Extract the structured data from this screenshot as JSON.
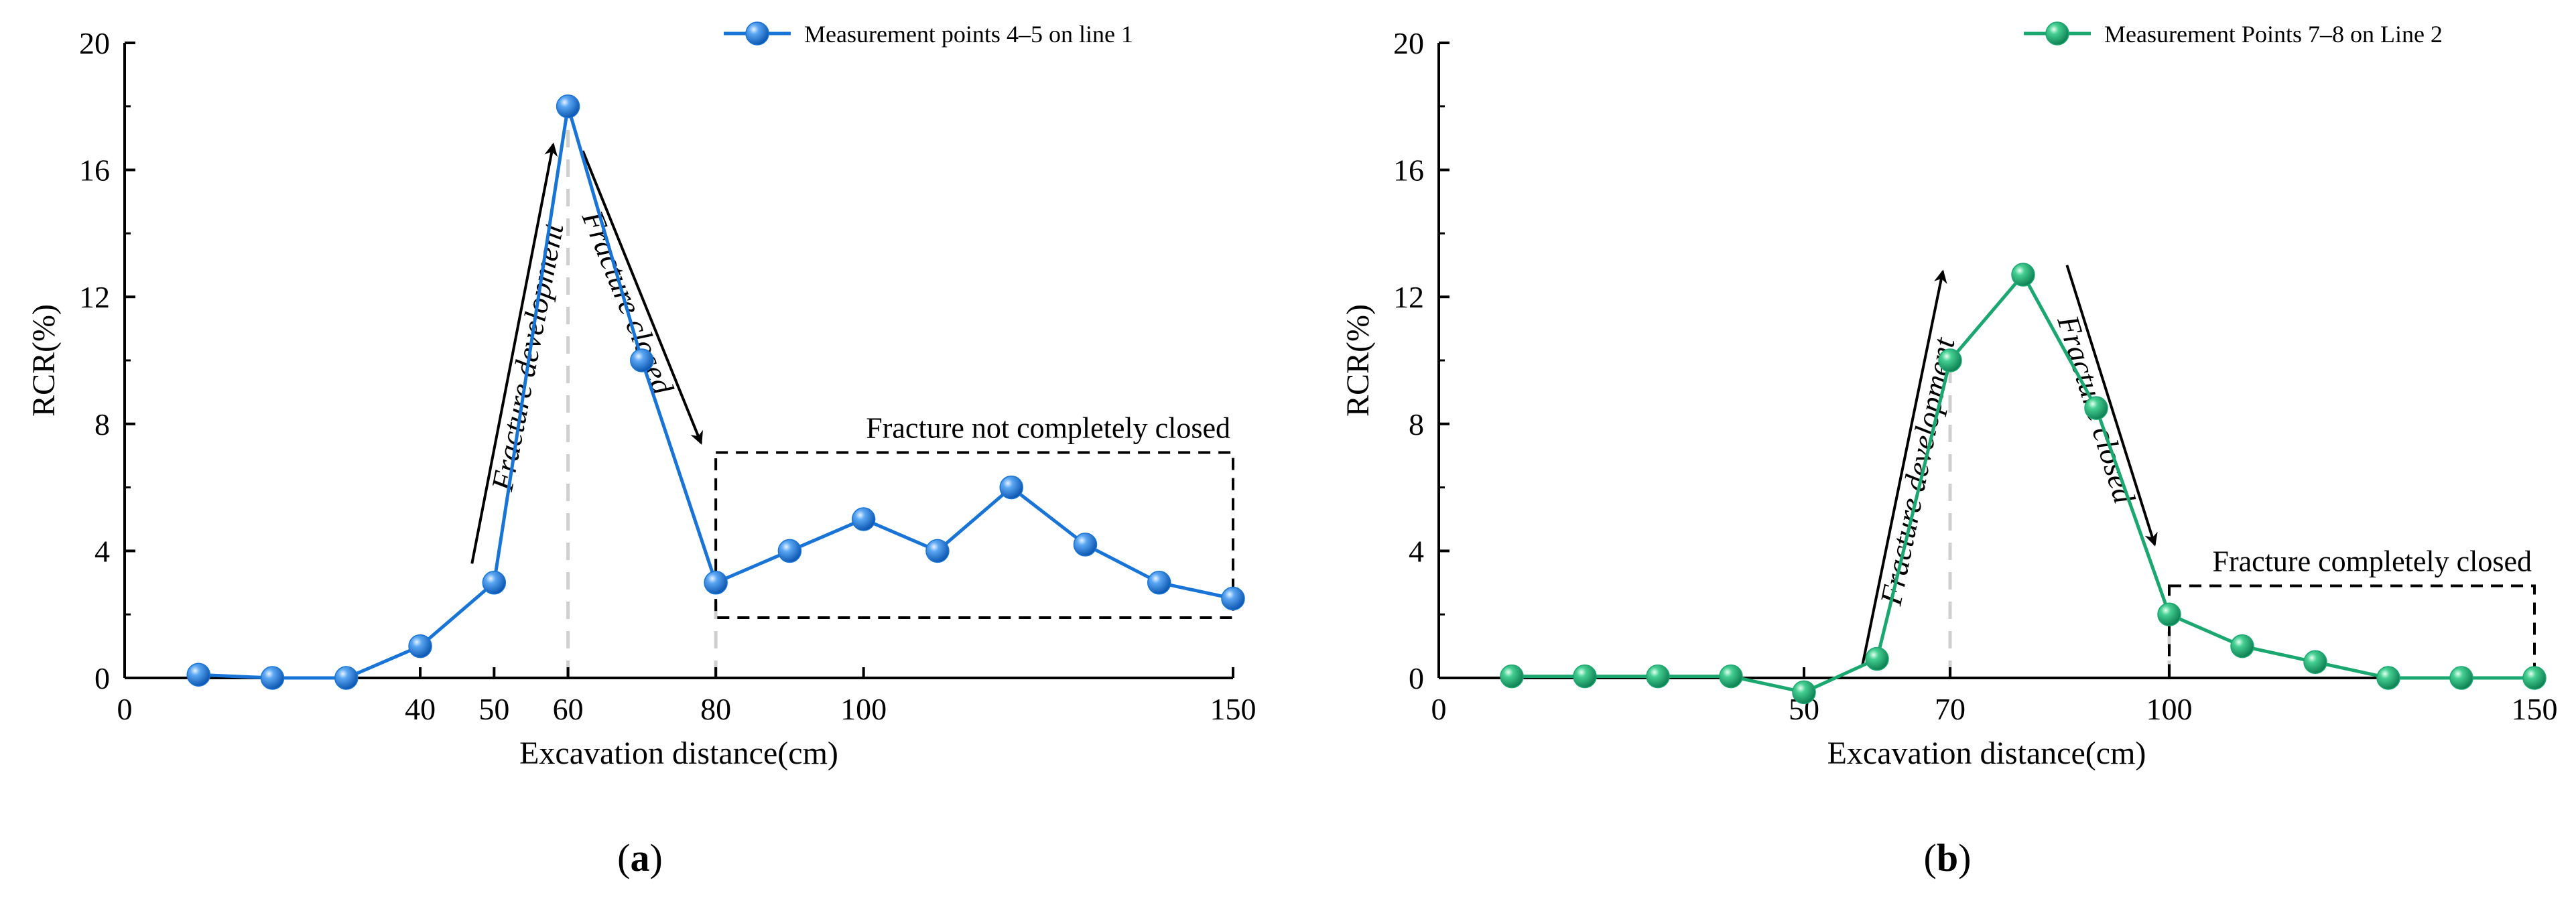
{
  "chart_data": [
    {
      "type": "line",
      "panel_label": "a",
      "xlabel": "Excavation distance(cm)",
      "ylabel": "RCR(%)",
      "xlim": [
        0,
        150
      ],
      "ylim": [
        0,
        20
      ],
      "x_ticks": [
        0,
        40,
        50,
        60,
        80,
        100,
        150
      ],
      "y_ticks": [
        0,
        4,
        8,
        12,
        16,
        20
      ],
      "legend_position": "top-right",
      "color": "#1874d6",
      "series": [
        {
          "name": "Measurement points 4–5 on line 1",
          "x": [
            10,
            20,
            30,
            40,
            50,
            60,
            70,
            80,
            90,
            100,
            110,
            120,
            130,
            140,
            150
          ],
          "y": [
            0.1,
            0.0,
            0.0,
            1.0,
            3.0,
            18.0,
            10.0,
            3.0,
            4.0,
            5.0,
            4.0,
            6.0,
            4.2,
            3.0,
            2.5
          ]
        }
      ],
      "vlines": [
        60,
        80
      ],
      "annotations": {
        "development": "Fracture development",
        "closed": "Fracture closed",
        "box_label": "Fracture not completely closed"
      },
      "box": {
        "x": [
          80,
          150
        ],
        "y": [
          1.9,
          7.1
        ]
      },
      "arrow_up": {
        "from": [
          47,
          3.6
        ],
        "to": [
          58,
          16.8
        ]
      },
      "arrow_down": {
        "from": [
          62,
          16.6
        ],
        "to": [
          78,
          7.4
        ]
      }
    },
    {
      "type": "line",
      "panel_label": "b",
      "xlabel": "Excavation distance(cm)",
      "ylabel": "RCR(%)",
      "xlim": [
        0,
        150
      ],
      "ylim": [
        0,
        20
      ],
      "x_ticks": [
        0,
        50,
        70,
        100,
        150
      ],
      "y_ticks": [
        0,
        4,
        8,
        12,
        16,
        20
      ],
      "legend_position": "top-right",
      "color": "#1aa870",
      "series": [
        {
          "name": "Measurement Points 7–8 on Line 2",
          "x": [
            10,
            20,
            30,
            40,
            50,
            60,
            70,
            80,
            90,
            100,
            110,
            120,
            130,
            140,
            150
          ],
          "y": [
            0.05,
            0.05,
            0.05,
            0.05,
            -0.45,
            0.6,
            10.0,
            12.7,
            8.5,
            2.0,
            1.0,
            0.5,
            0.0,
            0.0,
            0.0
          ]
        }
      ],
      "vlines": [
        70,
        100
      ],
      "annotations": {
        "development": "Fracture development",
        "closed": "Fracture closed",
        "box_label": "Fracture completely closed"
      },
      "box": {
        "x": [
          100,
          150
        ],
        "y": [
          0.0,
          2.9
        ]
      },
      "arrow_up": {
        "from": [
          58,
          0.4
        ],
        "to": [
          69,
          12.8
        ]
      },
      "arrow_down": {
        "from": [
          86,
          13.0
        ],
        "to": [
          98,
          4.2
        ]
      }
    }
  ]
}
